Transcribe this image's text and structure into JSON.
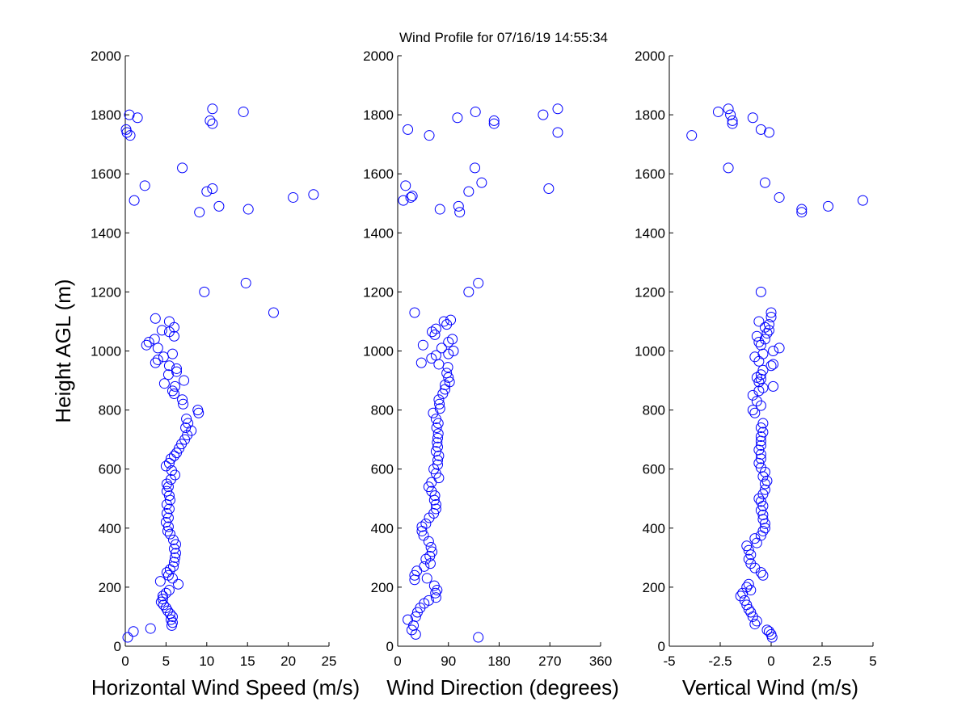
{
  "title": "Wind Profile for  07/16/19 14:55:34",
  "colors": {
    "marker": "#0000ff",
    "axes": "#000000",
    "background": "#ffffff"
  },
  "chart_data": [
    {
      "type": "scatter",
      "title": "Wind Profile for  07/16/19 14:55:34",
      "xlabel": "Horizontal Wind Speed (m/s)",
      "ylabel": "Height AGL (m)",
      "xlim": [
        0,
        25
      ],
      "ylim": [
        0,
        2000
      ],
      "xticks": [
        "0",
        "5",
        "10",
        "15",
        "20",
        "25"
      ],
      "yticks": [
        "0",
        "200",
        "400",
        "600",
        "800",
        "1000",
        "1200",
        "1400",
        "1600",
        "1800",
        "2000"
      ],
      "grid": false,
      "marker": "circle-open",
      "points": [
        [
          0.3,
          30
        ],
        [
          1.0,
          50
        ],
        [
          3.1,
          60
        ],
        [
          5.7,
          70
        ],
        [
          5.8,
          80
        ],
        [
          5.6,
          90
        ],
        [
          5.8,
          100
        ],
        [
          5.5,
          110
        ],
        [
          5.2,
          120
        ],
        [
          5.0,
          130
        ],
        [
          4.7,
          140
        ],
        [
          4.4,
          150
        ],
        [
          4.6,
          160
        ],
        [
          4.6,
          170
        ],
        [
          5.0,
          180
        ],
        [
          5.4,
          190
        ],
        [
          6.5,
          210
        ],
        [
          4.3,
          220
        ],
        [
          5.8,
          230
        ],
        [
          5.3,
          240
        ],
        [
          5.1,
          250
        ],
        [
          5.5,
          260
        ],
        [
          5.9,
          270
        ],
        [
          6.0,
          285
        ],
        [
          6.1,
          300
        ],
        [
          6.2,
          315
        ],
        [
          6.0,
          330
        ],
        [
          6.2,
          345
        ],
        [
          5.9,
          360
        ],
        [
          5.5,
          380
        ],
        [
          5.2,
          390
        ],
        [
          5.3,
          405
        ],
        [
          5.0,
          420
        ],
        [
          5.3,
          435
        ],
        [
          5.1,
          450
        ],
        [
          5.4,
          465
        ],
        [
          5.1,
          480
        ],
        [
          5.5,
          495
        ],
        [
          5.4,
          510
        ],
        [
          5.1,
          525
        ],
        [
          5.3,
          540
        ],
        [
          5.1,
          550
        ],
        [
          5.6,
          565
        ],
        [
          6.1,
          580
        ],
        [
          5.7,
          595
        ],
        [
          5.0,
          610
        ],
        [
          5.4,
          620
        ],
        [
          5.6,
          635
        ],
        [
          6.0,
          645
        ],
        [
          6.3,
          655
        ],
        [
          6.6,
          670
        ],
        [
          6.9,
          685
        ],
        [
          7.3,
          700
        ],
        [
          7.6,
          715
        ],
        [
          8.1,
          730
        ],
        [
          7.4,
          740
        ],
        [
          7.7,
          755
        ],
        [
          7.5,
          770
        ],
        [
          9.0,
          790
        ],
        [
          8.9,
          800
        ],
        [
          7.1,
          820
        ],
        [
          7.0,
          835
        ],
        [
          6.0,
          855
        ],
        [
          5.8,
          865
        ],
        [
          6.1,
          880
        ],
        [
          4.8,
          890
        ],
        [
          7.2,
          900
        ],
        [
          5.3,
          920
        ],
        [
          6.3,
          930
        ],
        [
          6.3,
          940
        ],
        [
          5.4,
          950
        ],
        [
          3.7,
          960
        ],
        [
          4.0,
          970
        ],
        [
          4.7,
          980
        ],
        [
          5.8,
          990
        ],
        [
          4.0,
          1010
        ],
        [
          2.6,
          1020
        ],
        [
          2.9,
          1030
        ],
        [
          3.6,
          1040
        ],
        [
          6.0,
          1050
        ],
        [
          5.4,
          1065
        ],
        [
          4.5,
          1070
        ],
        [
          6.0,
          1080
        ],
        [
          5.4,
          1100
        ],
        [
          3.7,
          1110
        ],
        [
          18.2,
          1130
        ],
        [
          9.7,
          1200
        ],
        [
          14.8,
          1230
        ],
        [
          15.1,
          1480
        ],
        [
          9.1,
          1470
        ],
        [
          11.5,
          1490
        ],
        [
          1.1,
          1510
        ],
        [
          20.6,
          1520
        ],
        [
          23.1,
          1530
        ],
        [
          10.0,
          1540
        ],
        [
          10.7,
          1550
        ],
        [
          2.4,
          1560
        ],
        [
          7.0,
          1620
        ],
        [
          0.2,
          1740
        ],
        [
          0.1,
          1750
        ],
        [
          0.6,
          1730
        ],
        [
          10.7,
          1770
        ],
        [
          10.4,
          1780
        ],
        [
          1.5,
          1790
        ],
        [
          0.5,
          1800
        ],
        [
          14.5,
          1810
        ],
        [
          10.7,
          1820
        ]
      ]
    },
    {
      "type": "scatter",
      "xlabel": "Wind Direction (degrees)",
      "ylabel": "",
      "xlim": [
        0,
        360
      ],
      "ylim": [
        0,
        2000
      ],
      "xticks": [
        "0",
        "90",
        "180",
        "270",
        "360"
      ],
      "yticks": [
        "0",
        "200",
        "400",
        "600",
        "800",
        "1000",
        "1200",
        "1400",
        "1600",
        "1800",
        "2000"
      ],
      "grid": false,
      "marker": "circle-open",
      "points": [
        [
          143,
          30
        ],
        [
          32,
          40
        ],
        [
          25,
          55
        ],
        [
          28,
          70
        ],
        [
          18,
          90
        ],
        [
          32,
          100
        ],
        [
          35,
          115
        ],
        [
          40,
          130
        ],
        [
          47,
          145
        ],
        [
          55,
          155
        ],
        [
          68,
          165
        ],
        [
          67,
          180
        ],
        [
          70,
          190
        ],
        [
          65,
          205
        ],
        [
          30,
          225
        ],
        [
          52,
          230
        ],
        [
          30,
          240
        ],
        [
          34,
          255
        ],
        [
          47,
          270
        ],
        [
          58,
          280
        ],
        [
          50,
          295
        ],
        [
          57,
          305
        ],
        [
          61,
          320
        ],
        [
          59,
          335
        ],
        [
          55,
          355
        ],
        [
          46,
          375
        ],
        [
          43,
          390
        ],
        [
          43,
          405
        ],
        [
          50,
          415
        ],
        [
          56,
          435
        ],
        [
          64,
          450
        ],
        [
          68,
          465
        ],
        [
          68,
          480
        ],
        [
          65,
          495
        ],
        [
          66,
          510
        ],
        [
          60,
          525
        ],
        [
          55,
          540
        ],
        [
          60,
          555
        ],
        [
          73,
          570
        ],
        [
          68,
          585
        ],
        [
          64,
          600
        ],
        [
          71,
          615
        ],
        [
          71,
          630
        ],
        [
          73,
          645
        ],
        [
          68,
          660
        ],
        [
          71,
          675
        ],
        [
          70,
          690
        ],
        [
          71,
          705
        ],
        [
          72,
          720
        ],
        [
          69,
          740
        ],
        [
          72,
          755
        ],
        [
          68,
          770
        ],
        [
          63,
          790
        ],
        [
          75,
          805
        ],
        [
          74,
          820
        ],
        [
          73,
          835
        ],
        [
          80,
          855
        ],
        [
          84,
          870
        ],
        [
          84,
          885
        ],
        [
          92,
          895
        ],
        [
          90,
          910
        ],
        [
          87,
          925
        ],
        [
          89,
          945
        ],
        [
          73,
          955
        ],
        [
          42,
          960
        ],
        [
          60,
          975
        ],
        [
          68,
          985
        ],
        [
          90,
          990
        ],
        [
          99,
          1000
        ],
        [
          78,
          1010
        ],
        [
          45,
          1020
        ],
        [
          90,
          1030
        ],
        [
          97,
          1040
        ],
        [
          66,
          1055
        ],
        [
          61,
          1065
        ],
        [
          68,
          1075
        ],
        [
          87,
          1090
        ],
        [
          82,
          1100
        ],
        [
          94,
          1105
        ],
        [
          30,
          1130
        ],
        [
          126,
          1200
        ],
        [
          143,
          1230
        ],
        [
          110,
          1470
        ],
        [
          75,
          1480
        ],
        [
          108,
          1490
        ],
        [
          10,
          1510
        ],
        [
          23,
          1520
        ],
        [
          26,
          1525
        ],
        [
          126,
          1540
        ],
        [
          268,
          1550
        ],
        [
          14,
          1560
        ],
        [
          149,
          1570
        ],
        [
          137,
          1620
        ],
        [
          56,
          1730
        ],
        [
          284,
          1740
        ],
        [
          18,
          1750
        ],
        [
          171,
          1770
        ],
        [
          171,
          1780
        ],
        [
          106,
          1790
        ],
        [
          258,
          1800
        ],
        [
          138,
          1810
        ],
        [
          284,
          1820
        ]
      ]
    },
    {
      "type": "scatter",
      "xlabel": "Vertical Wind (m/s)",
      "ylabel": "",
      "xlim": [
        -5,
        5
      ],
      "ylim": [
        0,
        2000
      ],
      "xticks": [
        "-5",
        "-2.5",
        "0",
        "2.5",
        "5"
      ],
      "yticks": [
        "0",
        "200",
        "400",
        "600",
        "800",
        "1000",
        "1200",
        "1400",
        "1600",
        "1800",
        "2000"
      ],
      "grid": false,
      "marker": "circle-open",
      "points": [
        [
          0.05,
          30
        ],
        [
          0.0,
          40
        ],
        [
          -0.1,
          50
        ],
        [
          -0.2,
          55
        ],
        [
          -0.8,
          75
        ],
        [
          -0.7,
          85
        ],
        [
          -0.9,
          100
        ],
        [
          -1.0,
          115
        ],
        [
          -1.1,
          125
        ],
        [
          -1.2,
          140
        ],
        [
          -1.3,
          155
        ],
        [
          -1.5,
          170
        ],
        [
          -1.4,
          180
        ],
        [
          -1.0,
          190
        ],
        [
          -1.2,
          200
        ],
        [
          -1.1,
          210
        ],
        [
          -0.4,
          240
        ],
        [
          -0.5,
          250
        ],
        [
          -0.8,
          265
        ],
        [
          -1.0,
          280
        ],
        [
          -1.1,
          295
        ],
        [
          -1.0,
          310
        ],
        [
          -1.1,
          325
        ],
        [
          -1.2,
          340
        ],
        [
          -0.7,
          350
        ],
        [
          -0.8,
          365
        ],
        [
          -0.5,
          375
        ],
        [
          -0.4,
          390
        ],
        [
          -0.3,
          400
        ],
        [
          -0.3,
          415
        ],
        [
          -0.4,
          430
        ],
        [
          -0.4,
          445
        ],
        [
          -0.5,
          460
        ],
        [
          -0.4,
          475
        ],
        [
          -0.5,
          490
        ],
        [
          -0.6,
          500
        ],
        [
          -0.4,
          515
        ],
        [
          -0.3,
          530
        ],
        [
          -0.3,
          550
        ],
        [
          -0.2,
          560
        ],
        [
          -0.4,
          575
        ],
        [
          -0.3,
          590
        ],
        [
          -0.5,
          605
        ],
        [
          -0.6,
          620
        ],
        [
          -0.5,
          635
        ],
        [
          -0.5,
          650
        ],
        [
          -0.6,
          665
        ],
        [
          -0.5,
          680
        ],
        [
          -0.5,
          695
        ],
        [
          -0.5,
          710
        ],
        [
          -0.4,
          725
        ],
        [
          -0.5,
          740
        ],
        [
          -0.4,
          755
        ],
        [
          -0.8,
          790
        ],
        [
          -0.9,
          800
        ],
        [
          -0.5,
          815
        ],
        [
          -0.7,
          830
        ],
        [
          -0.9,
          850
        ],
        [
          -0.6,
          865
        ],
        [
          -0.4,
          875
        ],
        [
          0.1,
          880
        ],
        [
          -0.6,
          895
        ],
        [
          -0.5,
          905
        ],
        [
          -0.7,
          910
        ],
        [
          -0.5,
          920
        ],
        [
          -0.4,
          935
        ],
        [
          0.0,
          950
        ],
        [
          0.1,
          955
        ],
        [
          -0.6,
          965
        ],
        [
          -0.8,
          980
        ],
        [
          -0.4,
          990
        ],
        [
          0.1,
          1000
        ],
        [
          0.4,
          1010
        ],
        [
          -0.5,
          1020
        ],
        [
          -0.6,
          1030
        ],
        [
          -0.3,
          1040
        ],
        [
          -0.7,
          1050
        ],
        [
          -0.2,
          1060
        ],
        [
          -0.1,
          1070
        ],
        [
          -0.3,
          1080
        ],
        [
          -0.1,
          1090
        ],
        [
          -0.6,
          1100
        ],
        [
          0.0,
          1115
        ],
        [
          0.0,
          1130
        ],
        [
          -0.5,
          1200
        ],
        [
          1.5,
          1470
        ],
        [
          1.5,
          1480
        ],
        [
          2.8,
          1490
        ],
        [
          4.5,
          1510
        ],
        [
          0.4,
          1520
        ],
        [
          -0.3,
          1570
        ],
        [
          -2.1,
          1620
        ],
        [
          -3.9,
          1730
        ],
        [
          -0.1,
          1740
        ],
        [
          -0.5,
          1750
        ],
        [
          -1.9,
          1770
        ],
        [
          -1.9,
          1780
        ],
        [
          -0.9,
          1790
        ],
        [
          -2.0,
          1800
        ],
        [
          -2.6,
          1810
        ],
        [
          -2.1,
          1820
        ]
      ]
    }
  ]
}
